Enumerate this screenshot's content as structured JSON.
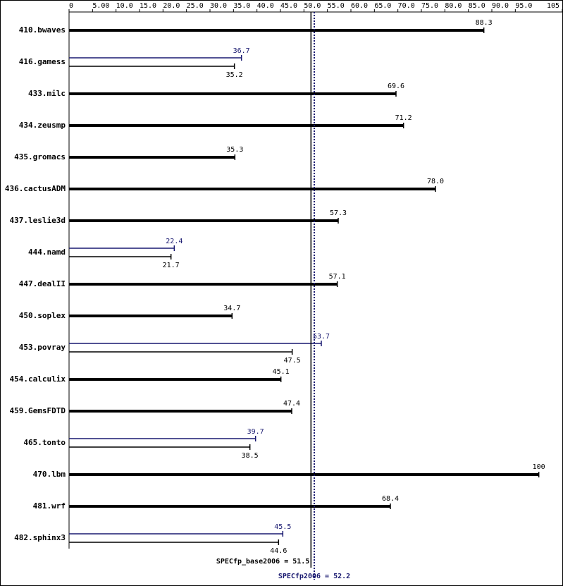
{
  "chart_data": {
    "type": "bar",
    "orientation": "horizontal",
    "categories": [
      "410.bwaves",
      "416.gamess",
      "433.milc",
      "434.zeusmp",
      "435.gromacs",
      "436.cactusADM",
      "437.leslie3d",
      "444.namd",
      "447.dealII",
      "450.soplex",
      "453.povray",
      "454.calculix",
      "459.GemsFDTD",
      "465.tonto",
      "470.lbm",
      "481.wrf",
      "482.sphinx3"
    ],
    "series": [
      {
        "color": "#000000",
        "values": [
          88.3,
          35.2,
          69.6,
          71.2,
          35.3,
          78.0,
          57.3,
          21.7,
          57.1,
          34.7,
          47.5,
          45.1,
          47.4,
          38.5,
          100,
          68.4,
          44.6
        ],
        "value_labels": [
          "88.3",
          "35.2",
          "69.6",
          "71.2",
          "35.3",
          "78.0",
          "57.3",
          "21.7",
          "57.1",
          "34.7",
          "47.5",
          "45.1",
          "47.4",
          "38.5",
          "100",
          "68.4",
          "44.6"
        ]
      },
      {
        "color": "#191970",
        "values": [
          null,
          36.7,
          null,
          null,
          null,
          null,
          null,
          22.4,
          null,
          null,
          53.7,
          null,
          null,
          39.7,
          null,
          null,
          45.5
        ],
        "value_labels": [
          null,
          "36.7",
          null,
          null,
          null,
          null,
          null,
          "22.4",
          null,
          null,
          "53.7",
          null,
          null,
          "39.7",
          null,
          null,
          "45.5"
        ]
      }
    ],
    "xlim": [
      0,
      105
    ],
    "xticks": [
      0,
      {
        "value": 5,
        "label": "5.00"
      },
      {
        "value": 10,
        "label": "10.0"
      },
      {
        "value": 15,
        "label": "15.0"
      },
      {
        "value": 20,
        "label": "20.0"
      },
      {
        "value": 25,
        "label": "25.0"
      },
      {
        "value": 30,
        "label": "30.0"
      },
      {
        "value": 35,
        "label": "35.0"
      },
      {
        "value": 40,
        "label": "40.0"
      },
      {
        "value": 45,
        "label": "45.0"
      },
      {
        "value": 50,
        "label": "50.0"
      },
      {
        "value": 55,
        "label": "55.0"
      },
      {
        "value": 60,
        "label": "60.0"
      },
      {
        "value": 65,
        "label": "65.0"
      },
      {
        "value": 70,
        "label": "70.0"
      },
      {
        "value": 75,
        "label": "75.0"
      },
      {
        "value": 80,
        "label": "80.0"
      },
      {
        "value": 85,
        "label": "85.0"
      },
      {
        "value": 90,
        "label": "90.0"
      },
      {
        "value": 95,
        "label": "95.0"
      },
      105
    ],
    "reference_lines": [
      {
        "value": 51.5,
        "label": "SPECfp_base2006 = 51.5",
        "color": "#000000"
      },
      {
        "value": 52.2,
        "label": "SPECfp2006 = 52.2",
        "color": "#191970"
      }
    ]
  }
}
